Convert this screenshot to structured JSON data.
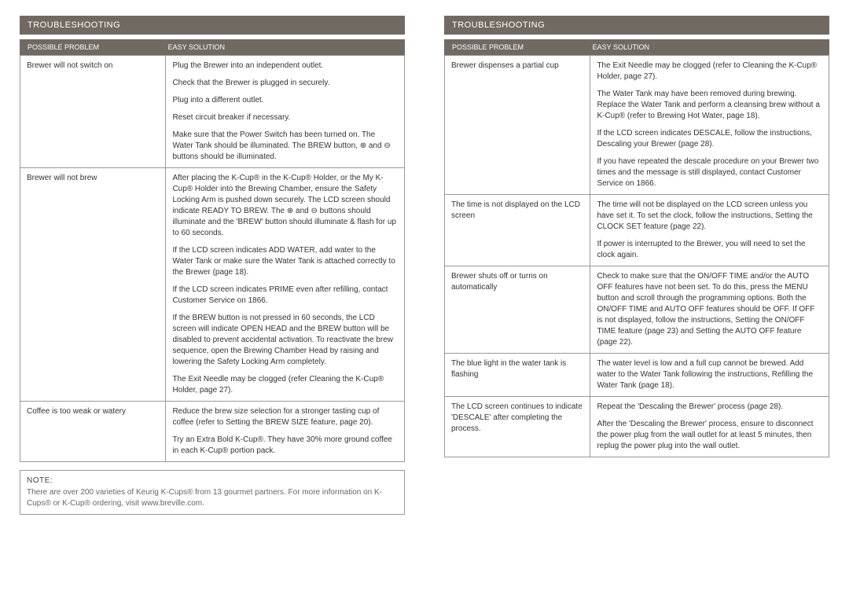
{
  "left": {
    "title": "TROUBLESHOOTING",
    "headers": {
      "problem": "POSSIBLE PROBLEM",
      "solution": "EASY SOLUTION"
    },
    "rows": [
      {
        "problem": "Brewer will not switch on",
        "solutions": [
          "Plug the Brewer into an independent outlet.",
          "Check that the Brewer is plugged in securely.",
          "Plug into a different outlet.",
          "Reset circuit breaker if necessary.",
          "Make sure that the Power Switch has been turned on. The Water Tank should be illuminated. The BREW button, ⊕ and ⊖ buttons should be illuminated."
        ]
      },
      {
        "problem": "Brewer will not brew",
        "solutions": [
          "After placing the K-Cup® in the K-Cup® Holder, or the My K-Cup® Holder into the Brewing Chamber, ensure the Safety Locking Arm is pushed down securely. The LCD screen should indicate READY TO BREW. The ⊕ and ⊖ buttons should illuminate and the 'BREW' button should illuminate & flash for up to 60 seconds.",
          "If the LCD screen indicates ADD WATER, add water to the Water Tank or make sure the Water Tank is attached correctly to the Brewer (page 18).",
          "If the LCD screen indicates PRIME even after refilling, contact Customer Service on 1866.",
          "If the BREW button is not pressed in 60 seconds, the LCD screen will indicate OPEN HEAD and the BREW button will be disabled to prevent accidental activation. To reactivate the brew sequence, open the Brewing Chamber Head by raising and lowering the Safety Locking Arm completely.",
          "The Exit Needle may be clogged (refer Cleaning the K-Cup® Holder, page 27)."
        ]
      },
      {
        "problem": "Coffee is too weak or watery",
        "solutions": [
          "Reduce the brew size selection for a stronger tasting cup of coffee (refer to Setting the BREW SIZE feature, page 20).",
          "Try an Extra Bold K-Cup®. They have 30% more ground coffee in each K-Cup® portion pack."
        ]
      }
    ],
    "note": {
      "label": "NOTE:",
      "text": "There are over 200 varieties of Keurig K-Cups® from 13 gourmet partners. For more information on K-Cups® or K-Cup® ordering, visit www.breville.com."
    }
  },
  "right": {
    "title": "TROUBLESHOOTING",
    "headers": {
      "problem": "POSSIBLE PROBLEM",
      "solution": "EASY SOLUTION"
    },
    "rows": [
      {
        "problem": "Brewer dispenses a partial cup",
        "solutions": [
          "The Exit Needle may be clogged (refer to Cleaning the K-Cup® Holder, page 27).",
          "The Water Tank may have been removed during brewing. Replace the Water Tank and perform a cleansing brew without a K-Cup® (refer to Brewing Hot Water, page 18).",
          "If the LCD screen indicates DESCALE, follow the instructions, Descaling your Brewer (page 28).",
          "If you have repeated the descale procedure on your Brewer two times and the message is still displayed, contact Customer Service on 1866."
        ]
      },
      {
        "problem": "The time is not displayed on the LCD screen",
        "solutions": [
          "The time will not be displayed on the LCD screen unless you have set it. To set the clock, follow the instructions, Setting the CLOCK SET feature (page 22).",
          "If power is interrupted to the Brewer, you will need to set the clock again."
        ]
      },
      {
        "problem": "Brewer shuts off or turns on automatically",
        "solutions": [
          "Check to make sure that the ON/OFF TIME and/or the AUTO OFF features have not been set. To do this, press the MENU button and scroll through the programming options. Both the ON/OFF TIME and AUTO OFF features should be OFF. If OFF is not displayed, follow the instructions, Setting the ON/OFF TIME feature (page 23) and Setting the AUTO OFF feature (page 22)."
        ]
      },
      {
        "problem": "The blue light in the water tank is flashing",
        "solutions": [
          "The water level is low and a full cup cannot be brewed. Add water to the Water Tank following the instructions, Refilling the Water Tank (page 18)."
        ]
      },
      {
        "problem": "The LCD screen continues to indicate 'DESCALE' after completing the process.",
        "solutions": [
          "Repeat the 'Descaling the Brewer' process (page 28).",
          "After the 'Descaling the Brewer' process, ensure to disconnect the power plug from the wall outlet for at least 5 minutes, then replug the power plug into the wall outlet."
        ]
      }
    ]
  },
  "colors": {
    "header_bg": "#706a63",
    "header_text": "#ffffff",
    "border": "#999999",
    "body_text": "#333333",
    "note_text": "#666666"
  }
}
